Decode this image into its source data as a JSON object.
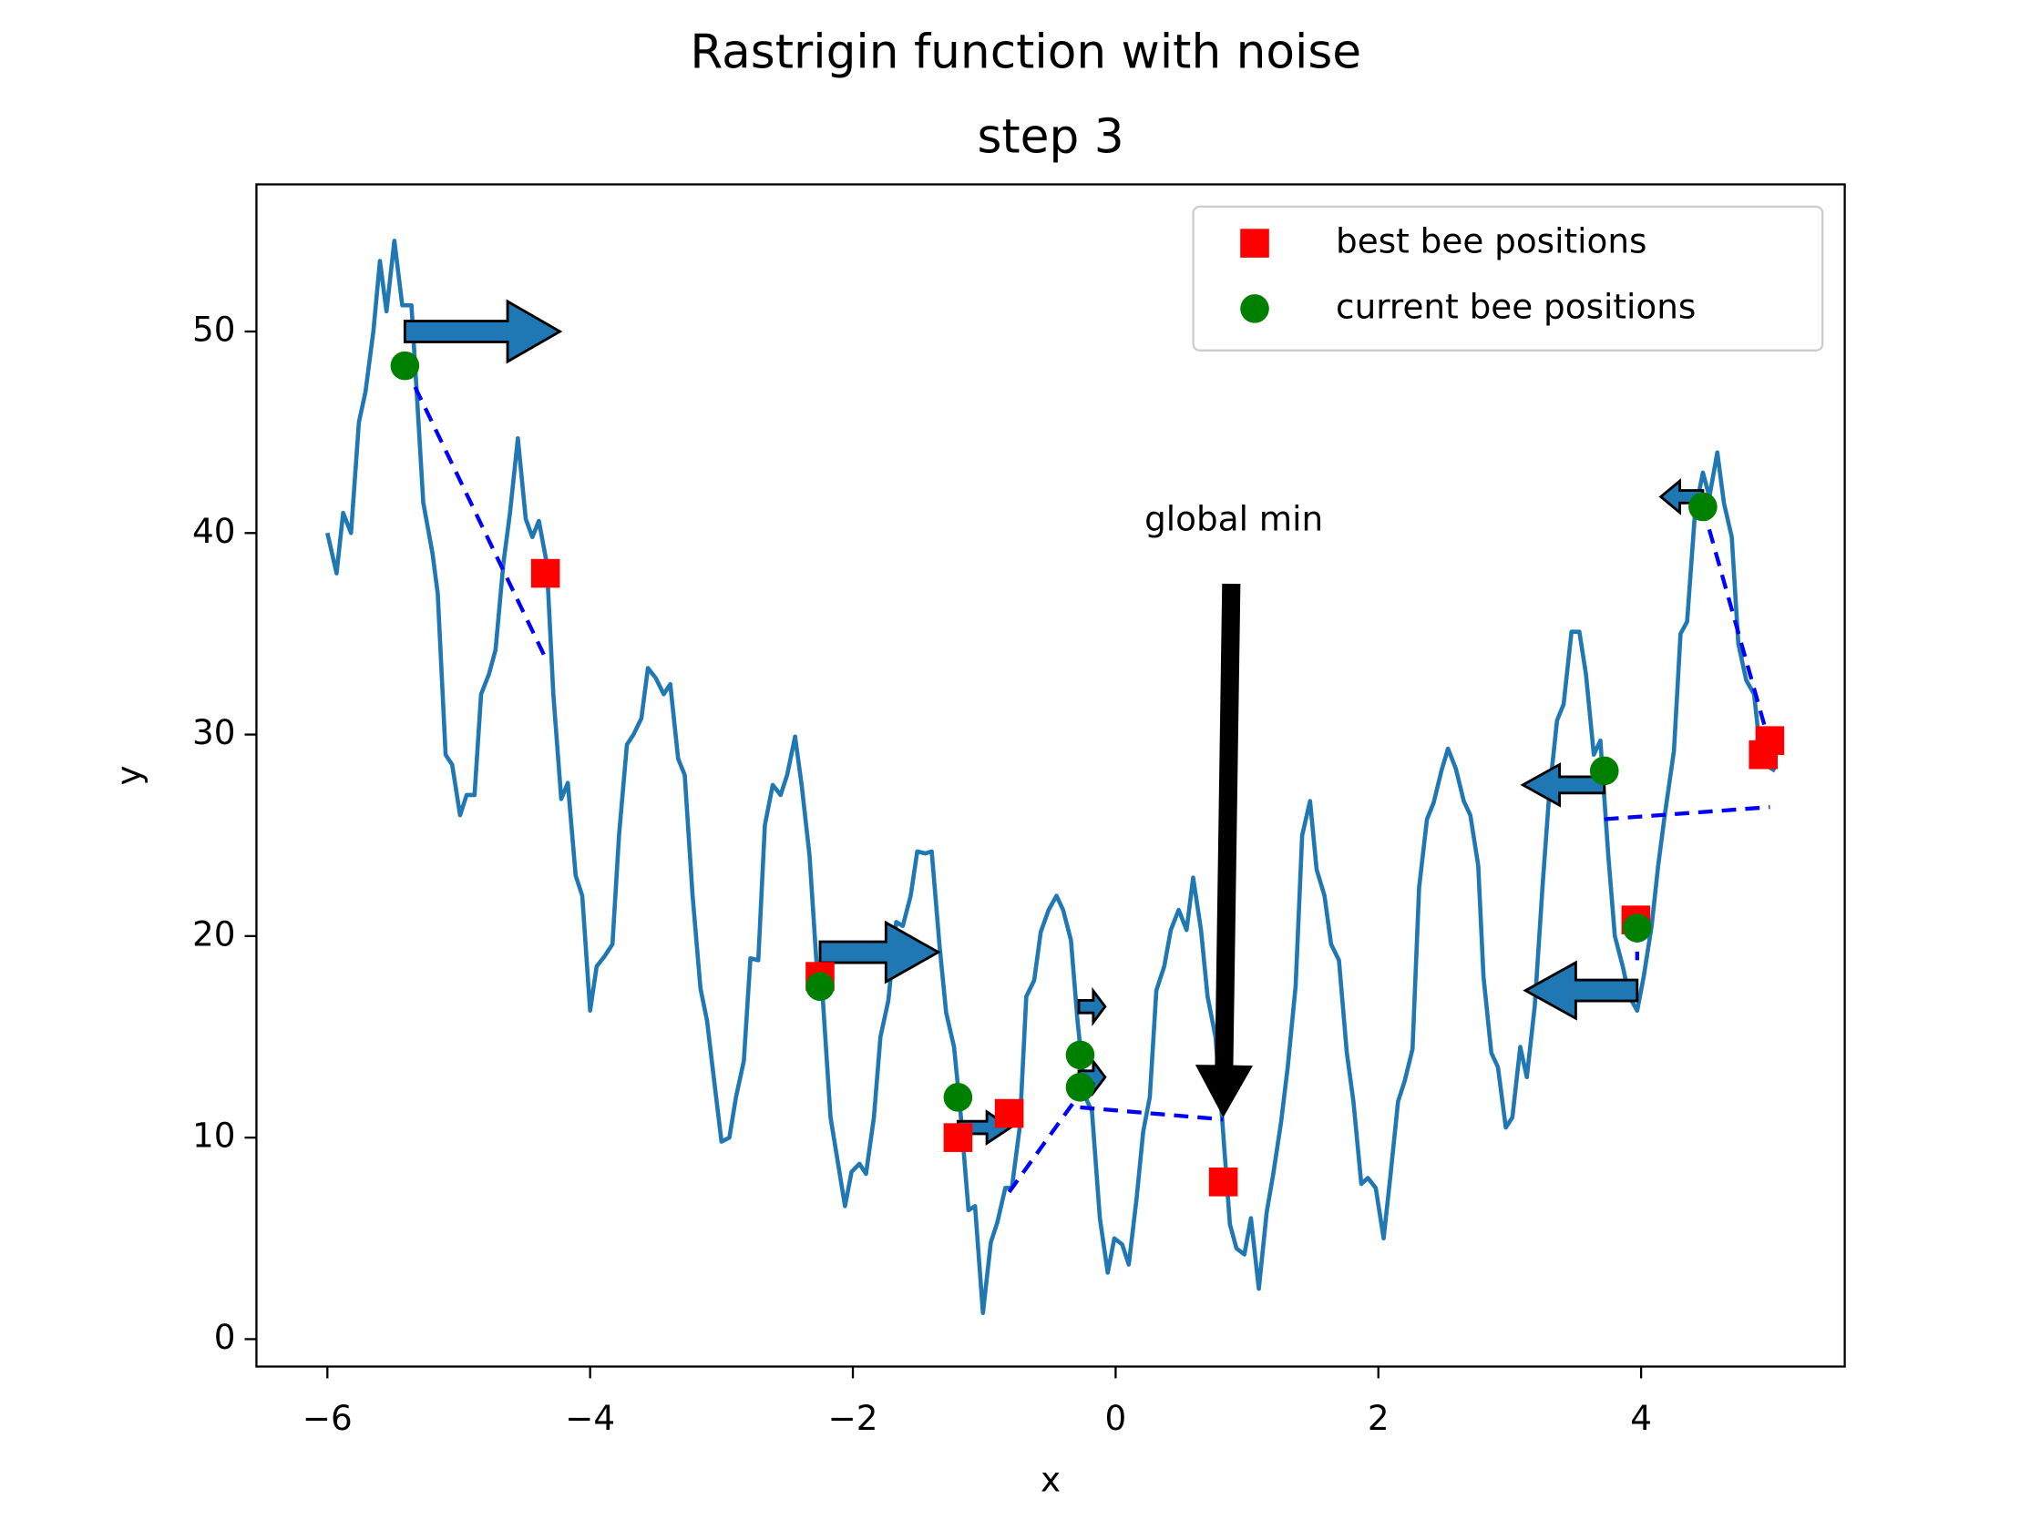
{
  "chart_data": {
    "type": "line",
    "title": "Rastrigin function with noise",
    "subtitle": "step 3",
    "subtitle_color": "#ff0000",
    "xlabel": "x",
    "ylabel": "y",
    "xlim": [
      -6.54,
      5.55
    ],
    "ylim": [
      -1.36,
      57.3
    ],
    "xticks": [
      {
        "value": -6,
        "label": "−6"
      },
      {
        "value": -4,
        "label": "−4"
      },
      {
        "value": -2,
        "label": "−2"
      },
      0,
      2,
      4
    ],
    "yticks": [
      0,
      10,
      20,
      30,
      40,
      50
    ],
    "legend": "upper right",
    "line": {
      "color": "#1f77b4",
      "x": [
        -6,
        -5.93,
        -5.88,
        -5.82,
        -5.76,
        -5.71,
        -5.65,
        -5.6,
        -5.55,
        -5.49,
        -5.43,
        -5.36,
        -5.32,
        -5.27,
        -5.2,
        -5.16,
        -5.1,
        -5.05,
        -4.99,
        -4.94,
        -4.88,
        -4.83,
        -4.77,
        -4.72,
        -4.66,
        -4.61,
        -4.55,
        -4.49,
        -4.44,
        -4.39,
        -4.33,
        -4.28,
        -4.22,
        -4.17,
        -4.11,
        -4.06,
        -4,
        -3.95,
        -3.89,
        -3.83,
        -3.78,
        -3.72,
        -3.67,
        -3.61,
        -3.56,
        -3.5,
        -3.44,
        -3.39,
        -3.33,
        -3.28,
        -3.22,
        -3.16,
        -3.11,
        -3.05,
        -3,
        -2.94,
        -2.89,
        -2.83,
        -2.78,
        -2.72,
        -2.67,
        -2.61,
        -2.55,
        -2.5,
        -2.44,
        -2.39,
        -2.33,
        -2.27,
        -2.23,
        -2.17,
        -2.12,
        -2.06,
        -2.01,
        -1.95,
        -1.9,
        -1.84,
        -1.79,
        -1.73,
        -1.67,
        -1.62,
        -1.56,
        -1.51,
        -1.45,
        -1.4,
        -1.34,
        -1.29,
        -1.23,
        -1.18,
        -1.12,
        -1.07,
        -1.01,
        -0.95,
        -0.9,
        -0.84,
        -0.79,
        -0.73,
        -0.68,
        -0.62,
        -0.57,
        -0.51,
        -0.45,
        -0.4,
        -0.34,
        -0.29,
        -0.23,
        -0.18,
        -0.12,
        -0.06,
        -0.01,
        0.05,
        0.1,
        0.16,
        0.21,
        0.26,
        0.31,
        0.37,
        0.42,
        0.48,
        0.54,
        0.59,
        0.65,
        0.7,
        0.76,
        0.81,
        0.87,
        0.92,
        0.98,
        1.03,
        1.09,
        1.15,
        1.2,
        1.26,
        1.31,
        1.37,
        1.42,
        1.48,
        1.53,
        1.59,
        1.64,
        1.7,
        1.76,
        1.81,
        1.87,
        1.92,
        1.98,
        2.04,
        2.09,
        2.15,
        2.2,
        2.26,
        2.31,
        2.37,
        2.42,
        2.48,
        2.53,
        2.59,
        2.65,
        2.7,
        2.76,
        2.8,
        2.86,
        2.91,
        2.97,
        3.02,
        3.08,
        3.13,
        3.19,
        3.25,
        3.3,
        3.36,
        3.41,
        3.47,
        3.53,
        3.58,
        3.64,
        3.69,
        3.75,
        3.8,
        3.86,
        3.91,
        3.97,
        4.02,
        4.08,
        4.13,
        4.18,
        4.25,
        4.3,
        4.35,
        4.41,
        4.47,
        4.52,
        4.58,
        4.63,
        4.69,
        4.74,
        4.8,
        4.86,
        4.91,
        4.97,
        5.02
      ],
      "y": [
        40,
        38,
        41,
        40,
        45.5,
        47,
        50,
        53.5,
        51,
        54.5,
        51.3,
        51.3,
        47,
        41.5,
        39,
        37,
        29,
        28.5,
        26,
        27,
        27,
        32,
        33,
        34.2,
        38.5,
        41,
        44.7,
        40.7,
        39.8,
        40.6,
        38.5,
        32,
        26.8,
        27.6,
        23,
        22,
        16.3,
        18.5,
        19,
        19.6,
        25,
        29.5,
        30,
        30.8,
        33.3,
        32.8,
        32,
        32.5,
        28.8,
        28,
        22,
        17.4,
        15.8,
        12.5,
        9.8,
        10,
        12,
        13.8,
        18.9,
        18.8,
        25.5,
        27.5,
        27,
        28,
        29.9,
        27.5,
        24,
        18,
        17,
        11,
        9,
        6.6,
        8.3,
        8.7,
        8.2,
        11,
        15,
        16.8,
        20.7,
        20.5,
        22,
        24.2,
        24.1,
        24.2,
        19.5,
        16.2,
        14.5,
        11.2,
        6.4,
        6.6,
        1.3,
        4.8,
        5.8,
        7.5,
        7.5,
        10.5,
        17,
        17.8,
        20.2,
        21.3,
        22,
        21.3,
        19.8,
        15.8,
        12,
        11.3,
        6,
        3.3,
        5,
        4.7,
        3.7,
        7,
        10.3,
        12,
        17.3,
        18.5,
        20.3,
        21.3,
        20.3,
        22.9,
        20.3,
        17,
        15,
        11,
        5.7,
        4.5,
        4.2,
        6,
        2.5,
        6.3,
        8.2,
        10.8,
        13.5,
        17.5,
        25,
        26.7,
        23.3,
        22,
        19.6,
        18.8,
        14.2,
        11.8,
        7.7,
        8,
        7.5,
        5,
        8,
        11.8,
        12.8,
        14.4,
        22.4,
        25.8,
        26.6,
        28.2,
        29.3,
        28.3,
        26.7,
        26,
        23.5,
        18,
        14.2,
        13.5,
        10.5,
        11,
        14.5,
        13,
        16.5,
        22.5,
        27,
        30.7,
        31.5,
        35.1,
        35.1,
        33,
        29,
        29.7,
        24,
        20,
        18.5,
        17,
        16.3,
        18,
        20.5,
        23.5,
        26,
        29.2,
        35,
        35.6,
        41,
        43,
        41.8,
        44,
        41.5,
        39.8,
        34.5,
        32.7,
        32,
        29,
        28.4,
        28.2
      ]
    },
    "series": [
      {
        "name": "best bee positions",
        "color": "#ff0000",
        "marker": "square",
        "x": [
          -4.34,
          -2.25,
          -1.2,
          -0.81,
          0.82,
          3.96,
          4.93,
          4.98
        ],
        "y": [
          38,
          18,
          10,
          11.2,
          7.8,
          20.8,
          29,
          29.7
        ]
      },
      {
        "name": "current bee positions",
        "color": "#008000",
        "marker": "circle",
        "x": [
          -5.41,
          -2.25,
          -1.2,
          -0.27,
          -0.27,
          3.72,
          3.97,
          4.47
        ],
        "y": [
          48.3,
          17.5,
          12,
          14.1,
          12.5,
          28.2,
          20.4,
          41.3
        ]
      }
    ],
    "arrows": {
      "color": "#1f77b4",
      "items": [
        {
          "x": -5.41,
          "y": 50,
          "dx": 1.18
        },
        {
          "x": -2.25,
          "y": 19.2,
          "dx": 0.9
        },
        {
          "x": -1.2,
          "y": 10.5,
          "dx": 0.4
        },
        {
          "x": -0.28,
          "y": 16.5,
          "dx": 0.2
        },
        {
          "x": -0.28,
          "y": 13,
          "dx": 0.2
        },
        {
          "x": 3.72,
          "y": 27.5,
          "dx": -0.62
        },
        {
          "x": 3.97,
          "y": 17.3,
          "dx": -0.85
        },
        {
          "x": 4.47,
          "y": 41.8,
          "dx": -0.32
        }
      ]
    },
    "velocity_lines": {
      "color": "#0000ff",
      "items": [
        {
          "x": [
            -5.41,
            -4.34
          ],
          "y": [
            48.3,
            33.8
          ]
        },
        {
          "x": [
            -2.25,
            -2.27
          ],
          "y": [
            17.5,
            16.5
          ]
        },
        {
          "x": [
            -0.81,
            -0.27
          ],
          "y": [
            7.3,
            12.2
          ]
        },
        {
          "x": [
            -0.27,
            0.82
          ],
          "y": [
            11.5,
            10.9
          ]
        },
        {
          "x": [
            3.72,
            4.98
          ],
          "y": [
            25.8,
            26.4
          ]
        },
        {
          "x": [
            3.97,
            3.97
          ],
          "y": [
            20.4,
            18.8
          ]
        },
        {
          "x": [
            4.47,
            4.98
          ],
          "y": [
            41.3,
            29.5
          ]
        }
      ]
    },
    "annotation": {
      "text": "global min",
      "xy": [
        0.82,
        11
      ],
      "xytext": [
        0.9,
        40.6
      ]
    }
  }
}
